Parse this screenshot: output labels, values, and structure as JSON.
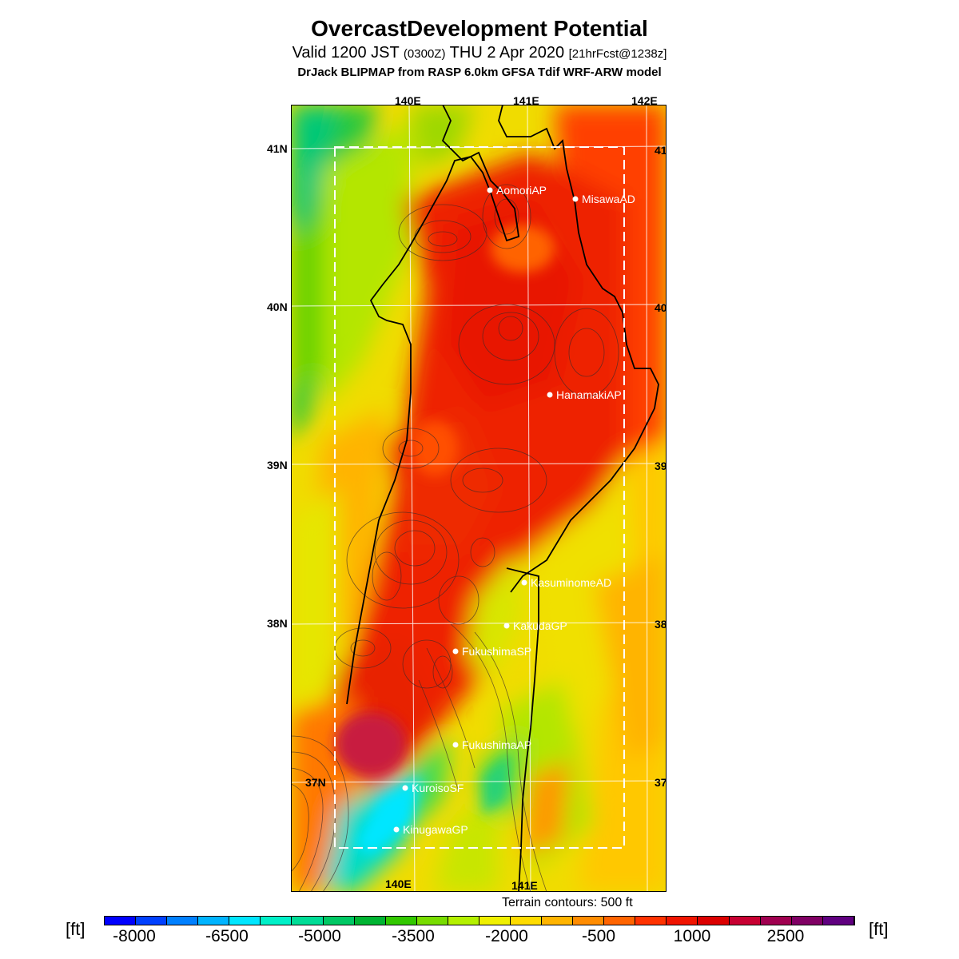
{
  "header": {
    "title": "OvercastDevelopment Potential",
    "valid_prefix": "Valid 1200 JST",
    "valid_utc": "(0300Z)",
    "valid_date": "THU 2 Apr 2020",
    "forecast": "[21hrFcst@1238z]",
    "model_line": "DrJack BLIPMAP from RASP 6.0km GFSA Tdif WRF-ARW model"
  },
  "map": {
    "lon_labels_top": [
      "140E",
      "141E",
      "142E"
    ],
    "lon_labels_bottom": [
      "140E",
      "141E"
    ],
    "lat_labels": [
      "41N",
      "40N",
      "39N",
      "38N",
      "37N"
    ],
    "stations": [
      "AomoriAP",
      "MisawaAD",
      "HanamakiAP",
      "KasuminomeAD",
      "KakudaGP",
      "FukushimaSP",
      "FukushimaAP",
      "KuroisoSF",
      "KinugawaGP"
    ],
    "colors": {
      "sea_green": "#00c05a",
      "yellow": "#f5f000",
      "orange": "#ff8c00",
      "red": "#ee1c00",
      "cyan": "#00e6ff"
    }
  },
  "footer": {
    "contour_note": "Terrain contours: 500 ft",
    "unit_left": "[ft]",
    "unit_right": "[ft]",
    "scale_labels": [
      "-8000",
      "-6500",
      "-5000",
      "-3500",
      "-2000",
      "-500",
      "1000",
      "2500"
    ],
    "scale_colors": [
      "#0000ff",
      "#0040ff",
      "#0080ff",
      "#00b4ff",
      "#00e6ff",
      "#00f0c8",
      "#00dc96",
      "#00c864",
      "#00b432",
      "#32c800",
      "#78dc00",
      "#b4f000",
      "#f0f000",
      "#ffdc00",
      "#ffb400",
      "#ff8c00",
      "#ff6400",
      "#ff3200",
      "#f01400",
      "#dc0000",
      "#c80032",
      "#a00050",
      "#800064",
      "#600080"
    ]
  }
}
